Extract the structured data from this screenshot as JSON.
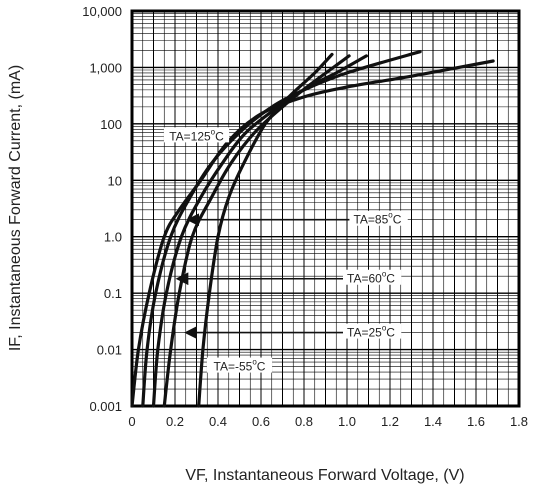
{
  "chart_data": {
    "type": "line",
    "xlabel": "VF, Instantaneous Forward Voltage, (V)",
    "ylabel": "IF, Instantaneous Forward Current, (mA)",
    "x_scale": "linear",
    "y_scale": "log",
    "xlim": [
      0,
      1.8
    ],
    "ylim": [
      0.001,
      10000
    ],
    "x_ticks": [
      "0",
      "0.2",
      "0.4",
      "0.6",
      "0.8",
      "1.0",
      "1.2",
      "1.4",
      "1.6",
      "1.8"
    ],
    "y_ticks": [
      "0.001",
      "0.01",
      "0.1",
      "1.0",
      "10",
      "100",
      "1,000",
      "10,000"
    ],
    "grid": true,
    "series": [
      {
        "name": "TA=125°C",
        "label_prefix": "TA=125",
        "label_suffix": "C",
        "x": [
          0.0,
          0.03,
          0.08,
          0.15,
          0.22,
          0.32,
          0.45,
          0.6,
          0.8,
          1.0,
          1.3,
          1.68
        ],
        "y": [
          0.001,
          0.01,
          0.1,
          1,
          3,
          10,
          50,
          150,
          300,
          450,
          700,
          1300
        ]
      },
      {
        "name": "TA=85°C",
        "label_prefix": "TA=85",
        "label_suffix": "C",
        "x": [
          0.05,
          0.07,
          0.11,
          0.18,
          0.27,
          0.37,
          0.5,
          0.65,
          0.8,
          1.0,
          1.34
        ],
        "y": [
          0.001,
          0.01,
          0.1,
          1,
          5,
          20,
          70,
          200,
          400,
          800,
          1900
        ]
      },
      {
        "name": "TA=60°C",
        "label_prefix": "TA=60",
        "label_suffix": "C",
        "x": [
          0.1,
          0.12,
          0.16,
          0.23,
          0.32,
          0.42,
          0.53,
          0.68,
          0.82,
          0.95,
          1.09
        ],
        "y": [
          0.001,
          0.01,
          0.1,
          1,
          5,
          20,
          70,
          200,
          450,
          800,
          1600
        ]
      },
      {
        "name": "TA=25°C",
        "label_prefix": "TA=25",
        "label_suffix": "C",
        "x": [
          0.15,
          0.18,
          0.22,
          0.28,
          0.37,
          0.46,
          0.57,
          0.7,
          0.83,
          1.01
        ],
        "y": [
          0.001,
          0.01,
          0.1,
          1,
          5,
          20,
          70,
          200,
          500,
          1600
        ]
      },
      {
        "name": "TA=-55°C",
        "label_prefix": "TA=-55",
        "label_suffix": "C",
        "x": [
          0.31,
          0.33,
          0.36,
          0.4,
          0.45,
          0.52,
          0.62,
          0.73,
          0.85,
          0.93
        ],
        "y": [
          0.001,
          0.01,
          0.1,
          1,
          5,
          20,
          100,
          300,
          800,
          1700
        ]
      }
    ],
    "annotations": [
      {
        "series": "TA=125°C",
        "label_x": 0.3,
        "label_y": 60,
        "arrow": false
      },
      {
        "series": "TA=85°C",
        "label_x": 1.03,
        "label_y": 2.0,
        "arrow_to_x": 0.26,
        "arrow_to_y": 2.0
      },
      {
        "series": "TA=60°C",
        "label_x": 1.0,
        "label_y": 0.18,
        "arrow_to_x": 0.21,
        "arrow_to_y": 0.18
      },
      {
        "series": "TA=25°C",
        "label_x": 1.0,
        "label_y": 0.02,
        "arrow_to_x": 0.25,
        "arrow_to_y": 0.02
      },
      {
        "series": "TA=-55°C",
        "label_x": 0.5,
        "label_y": 0.005,
        "arrow": false
      }
    ]
  }
}
